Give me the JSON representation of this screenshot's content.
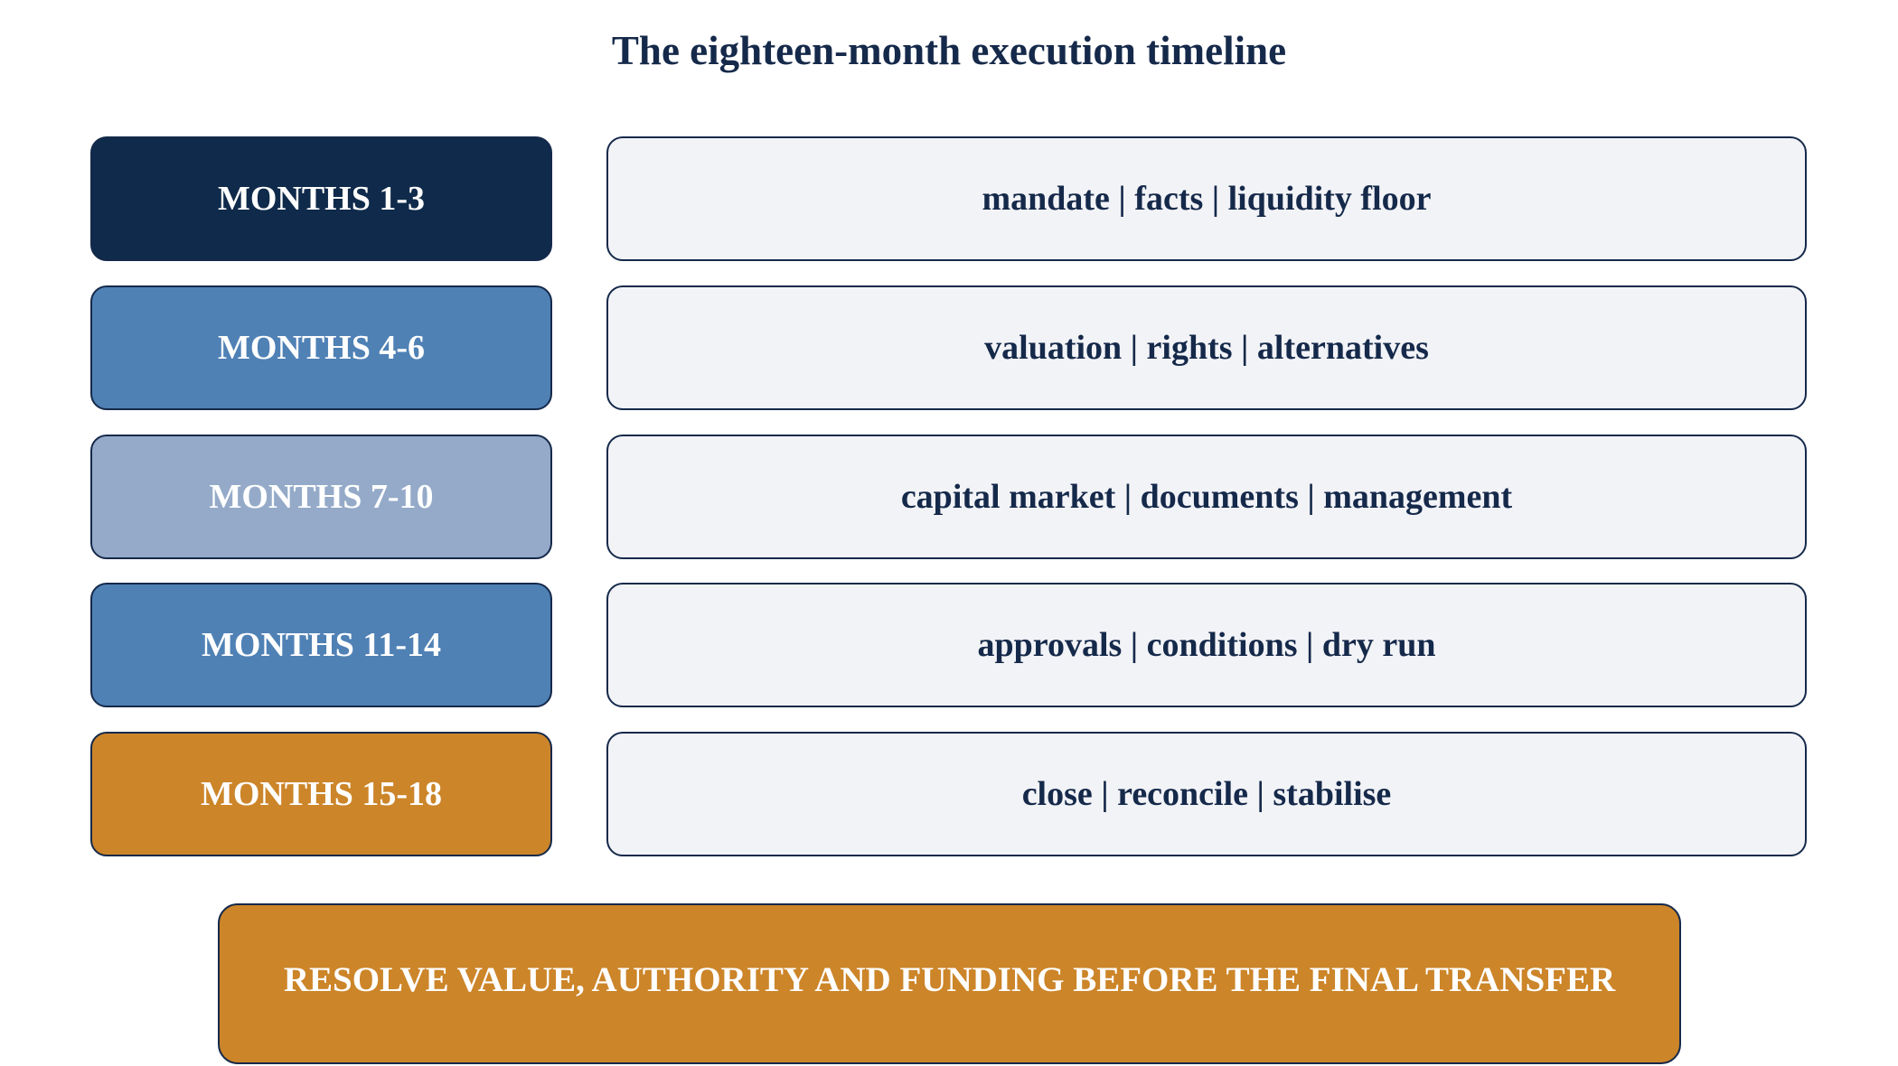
{
  "title": "The eighteen-month execution timeline",
  "rows": [
    {
      "period": "MONTHS 1-3",
      "tasks": "mandate | facts | liquidity floor"
    },
    {
      "period": "MONTHS 4-6",
      "tasks": "valuation | rights | alternatives"
    },
    {
      "period": "MONTHS 7-10",
      "tasks": "capital market | documents | management"
    },
    {
      "period": "MONTHS 11-14",
      "tasks": "approvals | conditions | dry run"
    },
    {
      "period": "MONTHS 15-18",
      "tasks": "close | reconcile | stabilise"
    }
  ],
  "footer": "RESOLVE VALUE, AUTHORITY AND FUNDING BEFORE THE FINAL TRANSFER"
}
